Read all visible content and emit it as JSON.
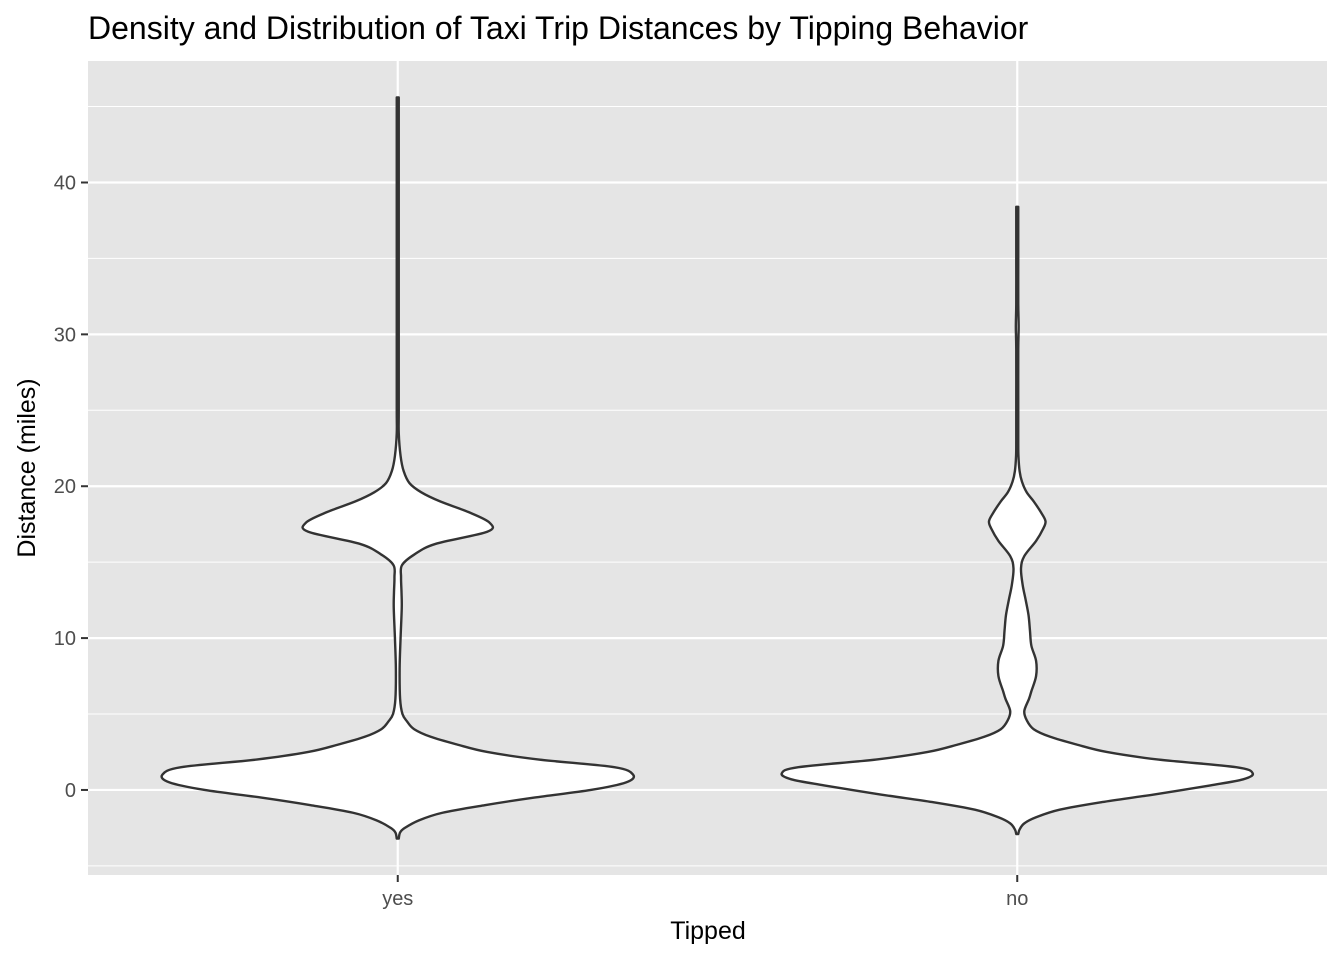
{
  "chart_data": {
    "type": "violin",
    "title": "Density and Distribution of Taxi Trip Distances by Tipping Behavior",
    "xlabel": "Tipped",
    "ylabel": "Distance (miles)",
    "categories": [
      "yes",
      "no"
    ],
    "ylim": [
      -5.6,
      48
    ],
    "y_ticks": [
      0,
      10,
      20,
      30,
      40
    ],
    "grid": true,
    "colors": {
      "panel_background": "#E5E5E5",
      "grid_line": "#FFFFFF",
      "violin_fill": "#FFFFFF",
      "violin_outline": "#333333",
      "tick_text": "#4D4D4D",
      "text": "#000000"
    },
    "series": [
      {
        "category": "yes",
        "density_profile": [
          [
            -3.2,
            0.0
          ],
          [
            -2.8,
            0.01
          ],
          [
            -2.5,
            0.03
          ],
          [
            -2.0,
            0.09
          ],
          [
            -1.5,
            0.19
          ],
          [
            -1.0,
            0.37
          ],
          [
            -0.5,
            0.58
          ],
          [
            0.0,
            0.82
          ],
          [
            0.5,
            0.97
          ],
          [
            1.0,
            1.0
          ],
          [
            1.5,
            0.92
          ],
          [
            2.0,
            0.6
          ],
          [
            2.5,
            0.38
          ],
          [
            3.0,
            0.25
          ],
          [
            3.5,
            0.14
          ],
          [
            4.0,
            0.07
          ],
          [
            4.5,
            0.04
          ],
          [
            5.0,
            0.02
          ],
          [
            6.0,
            0.01
          ],
          [
            8.0,
            0.008
          ],
          [
            10.0,
            0.012
          ],
          [
            12.0,
            0.017
          ],
          [
            13.0,
            0.016
          ],
          [
            14.0,
            0.014
          ],
          [
            14.8,
            0.018
          ],
          [
            15.5,
            0.07
          ],
          [
            16.2,
            0.16
          ],
          [
            17.0,
            0.38
          ],
          [
            17.6,
            0.39
          ],
          [
            18.3,
            0.3
          ],
          [
            19.0,
            0.18
          ],
          [
            19.6,
            0.1
          ],
          [
            20.2,
            0.05
          ],
          [
            21.0,
            0.025
          ],
          [
            22.0,
            0.012
          ],
          [
            23.5,
            0.004
          ],
          [
            25.0,
            0.002
          ],
          [
            30.0,
            0.002
          ],
          [
            31.0,
            0.003
          ],
          [
            32.0,
            0.002
          ],
          [
            35.0,
            0.001
          ],
          [
            40.0,
            0.001
          ],
          [
            45.6,
            0.0
          ]
        ]
      },
      {
        "category": "no",
        "density_profile": [
          [
            -2.9,
            0.0
          ],
          [
            -2.6,
            0.01
          ],
          [
            -2.2,
            0.03
          ],
          [
            -1.8,
            0.08
          ],
          [
            -1.3,
            0.18
          ],
          [
            -0.8,
            0.36
          ],
          [
            -0.3,
            0.58
          ],
          [
            0.3,
            0.82
          ],
          [
            0.7,
            0.96
          ],
          [
            1.1,
            1.0
          ],
          [
            1.5,
            0.93
          ],
          [
            2.0,
            0.6
          ],
          [
            2.5,
            0.38
          ],
          [
            3.0,
            0.25
          ],
          [
            3.5,
            0.14
          ],
          [
            4.0,
            0.07
          ],
          [
            4.6,
            0.04
          ],
          [
            5.2,
            0.03
          ],
          [
            6.0,
            0.05
          ],
          [
            6.5,
            0.06
          ],
          [
            7.5,
            0.08
          ],
          [
            8.5,
            0.08
          ],
          [
            9.5,
            0.06
          ],
          [
            10.5,
            0.054
          ],
          [
            11.5,
            0.048
          ],
          [
            12.5,
            0.036
          ],
          [
            13.5,
            0.023
          ],
          [
            14.6,
            0.016
          ],
          [
            15.4,
            0.03
          ],
          [
            16.4,
            0.08
          ],
          [
            17.2,
            0.11
          ],
          [
            17.7,
            0.12
          ],
          [
            18.3,
            0.1
          ],
          [
            19.0,
            0.07
          ],
          [
            19.6,
            0.04
          ],
          [
            20.3,
            0.02
          ],
          [
            21.0,
            0.01
          ],
          [
            22.0,
            0.005
          ],
          [
            23.0,
            0.002
          ],
          [
            25.0,
            0.002
          ],
          [
            29.0,
            0.003
          ],
          [
            30.5,
            0.006
          ],
          [
            32.0,
            0.003
          ],
          [
            35.0,
            0.002
          ],
          [
            37.0,
            0.001
          ],
          [
            38.4,
            0.0
          ]
        ]
      }
    ]
  }
}
